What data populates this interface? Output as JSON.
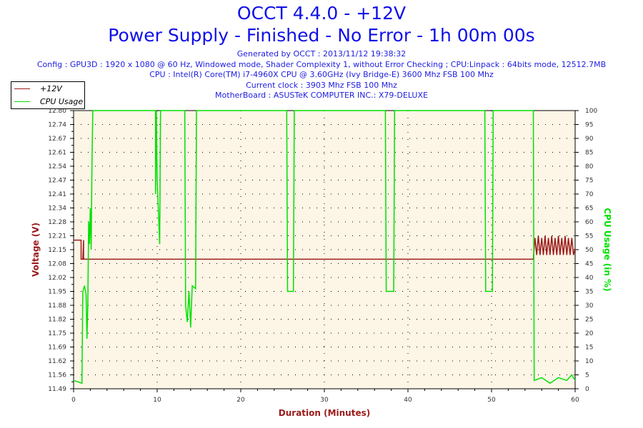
{
  "header": {
    "title": "OCCT 4.4.0 - +12V",
    "subtitle": "Power Supply - Finished - No Error - 1h 00m 00s",
    "info": [
      "Generated by OCCT : 2013/11/12 19:38:32",
      "Config : GPU3D : 1920 x 1080 @ 60 Hz, Windowed mode, Shader Complexity 1, without Error Checking ; CPU:Linpack : 64bits mode, 12512.7MB",
      "CPU : Intel(R) Core(TM) i7-4960X CPU @ 3.60GHz (Ivy Bridge-E) 3600 Mhz FSB 100 Mhz",
      "Current clock : 3903 Mhz FSB 100 Mhz",
      "MotherBoard : ASUSTeK COMPUTER INC.: X79-DELUXE"
    ]
  },
  "colors": {
    "voltage": "#9b1b1b",
    "cpu": "#00e000",
    "title": "#1010e8",
    "plot_bg": "#fdf5e6"
  },
  "chart_data": {
    "type": "line",
    "xlabel": "Duration (Minutes)",
    "ylabel": "Voltage (V)",
    "y2label": "CPU Usage (in %)",
    "xlim": [
      0,
      60
    ],
    "ylim": [
      11.49,
      12.8
    ],
    "y2lim": [
      0,
      100
    ],
    "xticks": [
      "0",
      "10",
      "20",
      "30",
      "40",
      "50",
      "60"
    ],
    "yticks": [
      "12.80",
      "12.74",
      "12.67",
      "12.61",
      "12.54",
      "12.47",
      "12.41",
      "12.34",
      "12.28",
      "12.21",
      "12.15",
      "12.08",
      "12.02",
      "11.95",
      "11.88",
      "11.82",
      "11.75",
      "11.69",
      "11.62",
      "11.56",
      "11.49"
    ],
    "y2ticks": [
      "100",
      "95",
      "90",
      "85",
      "80",
      "75",
      "70",
      "65",
      "60",
      "55",
      "50",
      "45",
      "40",
      "35",
      "30",
      "25",
      "20",
      "15",
      "10",
      "5",
      "0"
    ],
    "legend": [
      "+12V",
      "CPU Usage"
    ],
    "legend_position": "top-left",
    "series": [
      {
        "name": "+12V",
        "axis": "left",
        "points": [
          [
            0,
            12.19
          ],
          [
            0.9,
            12.19
          ],
          [
            0.9,
            12.1
          ],
          [
            1.2,
            12.1
          ],
          [
            1.2,
            12.19
          ],
          [
            1.1,
            12.1
          ],
          [
            55,
            12.1
          ],
          [
            55.2,
            12.2
          ],
          [
            55.4,
            12.12
          ],
          [
            55.6,
            12.21
          ],
          [
            55.8,
            12.12
          ],
          [
            56,
            12.2
          ],
          [
            56.2,
            12.12
          ],
          [
            56.4,
            12.21
          ],
          [
            56.6,
            12.12
          ],
          [
            56.8,
            12.2
          ],
          [
            57,
            12.12
          ],
          [
            57.2,
            12.21
          ],
          [
            57.4,
            12.12
          ],
          [
            57.6,
            12.2
          ],
          [
            57.8,
            12.12
          ],
          [
            58,
            12.21
          ],
          [
            58.2,
            12.12
          ],
          [
            58.4,
            12.2
          ],
          [
            58.6,
            12.12
          ],
          [
            58.8,
            12.21
          ],
          [
            59,
            12.12
          ],
          [
            59.2,
            12.2
          ],
          [
            59.4,
            12.12
          ],
          [
            59.6,
            12.2
          ],
          [
            59.8,
            12.12
          ],
          [
            60,
            12.15
          ]
        ]
      },
      {
        "name": "CPU Usage",
        "axis": "right",
        "points": [
          [
            0,
            3
          ],
          [
            1,
            2
          ],
          [
            1.1,
            35
          ],
          [
            1.3,
            37
          ],
          [
            1.5,
            34
          ],
          [
            1.6,
            18
          ],
          [
            1.7,
            30
          ],
          [
            1.8,
            60
          ],
          [
            1.9,
            52
          ],
          [
            2,
            65
          ],
          [
            2.1,
            50
          ],
          [
            2.2,
            80
          ],
          [
            2.3,
            100
          ],
          [
            9.8,
            100
          ],
          [
            9.8,
            70
          ],
          [
            9.9,
            100
          ],
          [
            10,
            75
          ],
          [
            10.2,
            60
          ],
          [
            10.3,
            52
          ],
          [
            10.4,
            100
          ],
          [
            13.3,
            100
          ],
          [
            13.4,
            30
          ],
          [
            13.6,
            24
          ],
          [
            13.8,
            35
          ],
          [
            14,
            22
          ],
          [
            14.2,
            37
          ],
          [
            14.6,
            36
          ],
          [
            14.7,
            100
          ],
          [
            25.5,
            100
          ],
          [
            25.6,
            35
          ],
          [
            26.3,
            35
          ],
          [
            26.4,
            100
          ],
          [
            37.3,
            100
          ],
          [
            37.4,
            35
          ],
          [
            38.3,
            35
          ],
          [
            38.4,
            100
          ],
          [
            49.2,
            100
          ],
          [
            49.3,
            35
          ],
          [
            50.1,
            35
          ],
          [
            50.2,
            100
          ],
          [
            55,
            100
          ],
          [
            55.1,
            3
          ],
          [
            56,
            4
          ],
          [
            57,
            2
          ],
          [
            58,
            4
          ],
          [
            59,
            3
          ],
          [
            59.6,
            5
          ],
          [
            60,
            3
          ]
        ]
      }
    ]
  }
}
